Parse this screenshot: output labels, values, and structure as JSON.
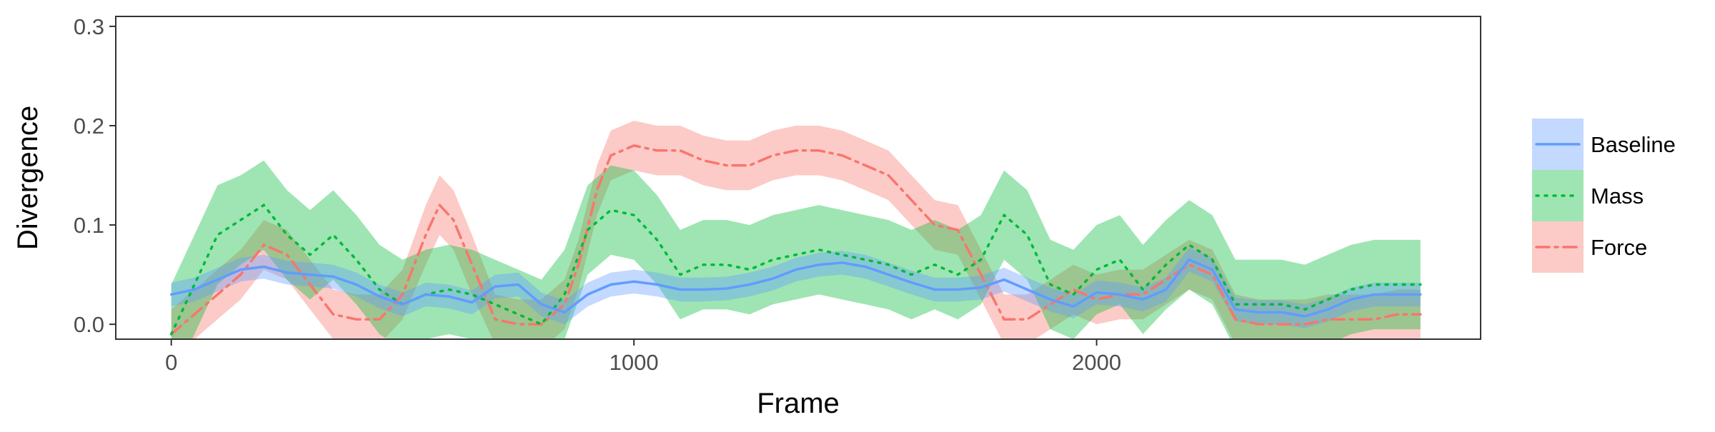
{
  "chart_data": {
    "type": "line",
    "title": "",
    "xlabel": "Frame",
    "ylabel": "Divergence",
    "xlim": [
      -120,
      2830
    ],
    "ylim": [
      -0.015,
      0.31
    ],
    "x_ticks": [
      0,
      1000,
      2000
    ],
    "x_tick_labels": [
      "0",
      "1000",
      "2000"
    ],
    "y_ticks": [
      0.0,
      0.1,
      0.2,
      0.3
    ],
    "y_tick_labels": [
      "0.0",
      "0.1",
      "0.2",
      "0.3"
    ],
    "grid": false,
    "legend_position": "right",
    "series": [
      {
        "name": "Force",
        "color": "#F8766D",
        "dash": "dashdot",
        "x": [
          0,
          50,
          100,
          150,
          200,
          250,
          300,
          350,
          400,
          450,
          500,
          550,
          580,
          610,
          650,
          700,
          750,
          800,
          850,
          880,
          920,
          950,
          1000,
          1050,
          1100,
          1150,
          1200,
          1250,
          1300,
          1350,
          1400,
          1450,
          1500,
          1550,
          1600,
          1650,
          1700,
          1750,
          1800,
          1850,
          1900,
          1950,
          2000,
          2050,
          2100,
          2150,
          2200,
          2250,
          2300,
          2350,
          2400,
          2450,
          2500,
          2550,
          2600,
          2650,
          2700
        ],
        "y": [
          -0.01,
          0.01,
          0.03,
          0.05,
          0.08,
          0.07,
          0.04,
          0.01,
          0.005,
          0.005,
          0.03,
          0.09,
          0.12,
          0.105,
          0.06,
          0.005,
          0.0,
          0.0,
          0.02,
          0.06,
          0.135,
          0.17,
          0.18,
          0.175,
          0.175,
          0.165,
          0.16,
          0.16,
          0.17,
          0.175,
          0.175,
          0.17,
          0.16,
          0.15,
          0.125,
          0.1,
          0.095,
          0.05,
          0.005,
          0.005,
          0.02,
          0.035,
          0.025,
          0.03,
          0.03,
          0.045,
          0.06,
          0.05,
          0.005,
          0.0,
          0.0,
          0.0,
          0.005,
          0.005,
          0.005,
          0.01,
          0.01
        ],
        "band": [
          0.025,
          0.025,
          0.025,
          0.025,
          0.025,
          0.025,
          0.025,
          0.025,
          0.025,
          0.025,
          0.025,
          0.03,
          0.03,
          0.03,
          0.03,
          0.025,
          0.025,
          0.025,
          0.025,
          0.025,
          0.025,
          0.025,
          0.025,
          0.025,
          0.025,
          0.025,
          0.025,
          0.025,
          0.025,
          0.025,
          0.025,
          0.025,
          0.025,
          0.025,
          0.025,
          0.025,
          0.025,
          0.025,
          0.025,
          0.025,
          0.025,
          0.025,
          0.025,
          0.025,
          0.025,
          0.025,
          0.025,
          0.025,
          0.025,
          0.025,
          0.025,
          0.025,
          0.025,
          0.025,
          0.025,
          0.025,
          0.025
        ]
      },
      {
        "name": "Mass",
        "color": "#00BA38",
        "dash": "dotted",
        "x": [
          0,
          50,
          100,
          150,
          200,
          250,
          300,
          350,
          400,
          450,
          500,
          550,
          600,
          650,
          700,
          750,
          800,
          850,
          900,
          950,
          1000,
          1050,
          1100,
          1150,
          1200,
          1250,
          1300,
          1350,
          1400,
          1450,
          1500,
          1550,
          1600,
          1650,
          1700,
          1750,
          1800,
          1850,
          1900,
          1950,
          2000,
          2050,
          2100,
          2150,
          2200,
          2250,
          2300,
          2350,
          2400,
          2450,
          2500,
          2550,
          2600,
          2650,
          2700
        ],
        "y": [
          -0.01,
          0.04,
          0.09,
          0.105,
          0.12,
          0.09,
          0.07,
          0.09,
          0.065,
          0.035,
          0.02,
          0.03,
          0.035,
          0.03,
          0.02,
          0.01,
          0.0,
          0.03,
          0.095,
          0.115,
          0.11,
          0.085,
          0.05,
          0.06,
          0.06,
          0.055,
          0.065,
          0.07,
          0.075,
          0.07,
          0.065,
          0.06,
          0.05,
          0.06,
          0.05,
          0.065,
          0.11,
          0.09,
          0.04,
          0.03,
          0.055,
          0.065,
          0.035,
          0.06,
          0.08,
          0.065,
          0.02,
          0.02,
          0.02,
          0.015,
          0.025,
          0.035,
          0.04,
          0.04,
          0.04
        ],
        "band": [
          0.05,
          0.05,
          0.05,
          0.045,
          0.045,
          0.045,
          0.045,
          0.045,
          0.045,
          0.045,
          0.045,
          0.045,
          0.045,
          0.045,
          0.045,
          0.045,
          0.045,
          0.045,
          0.045,
          0.045,
          0.045,
          0.045,
          0.045,
          0.045,
          0.045,
          0.045,
          0.045,
          0.045,
          0.045,
          0.045,
          0.045,
          0.045,
          0.045,
          0.045,
          0.045,
          0.045,
          0.045,
          0.045,
          0.045,
          0.045,
          0.045,
          0.045,
          0.045,
          0.045,
          0.045,
          0.045,
          0.045,
          0.045,
          0.045,
          0.045,
          0.045,
          0.045,
          0.045,
          0.045,
          0.045
        ]
      },
      {
        "name": "Baseline",
        "color": "#619CFF",
        "dash": "solid",
        "x": [
          0,
          50,
          100,
          150,
          200,
          250,
          300,
          350,
          400,
          450,
          500,
          550,
          600,
          650,
          700,
          750,
          800,
          850,
          900,
          950,
          1000,
          1050,
          1100,
          1150,
          1200,
          1250,
          1300,
          1350,
          1400,
          1450,
          1500,
          1550,
          1600,
          1650,
          1700,
          1750,
          1800,
          1850,
          1900,
          1950,
          2000,
          2050,
          2100,
          2150,
          2200,
          2250,
          2300,
          2350,
          2400,
          2450,
          2500,
          2550,
          2600,
          2650,
          2700
        ],
        "y": [
          0.03,
          0.035,
          0.045,
          0.055,
          0.058,
          0.052,
          0.05,
          0.048,
          0.04,
          0.028,
          0.02,
          0.03,
          0.028,
          0.022,
          0.038,
          0.04,
          0.02,
          0.012,
          0.03,
          0.04,
          0.043,
          0.04,
          0.035,
          0.035,
          0.036,
          0.04,
          0.046,
          0.055,
          0.06,
          0.062,
          0.058,
          0.05,
          0.042,
          0.035,
          0.035,
          0.037,
          0.045,
          0.035,
          0.025,
          0.018,
          0.032,
          0.03,
          0.025,
          0.035,
          0.065,
          0.055,
          0.015,
          0.012,
          0.012,
          0.008,
          0.015,
          0.025,
          0.03,
          0.03,
          0.03
        ],
        "band": [
          0.012,
          0.012,
          0.012,
          0.012,
          0.012,
          0.012,
          0.012,
          0.012,
          0.012,
          0.012,
          0.012,
          0.012,
          0.012,
          0.012,
          0.012,
          0.012,
          0.012,
          0.012,
          0.012,
          0.012,
          0.012,
          0.012,
          0.012,
          0.012,
          0.012,
          0.012,
          0.012,
          0.012,
          0.012,
          0.012,
          0.012,
          0.012,
          0.012,
          0.012,
          0.012,
          0.012,
          0.012,
          0.012,
          0.012,
          0.012,
          0.012,
          0.012,
          0.012,
          0.012,
          0.012,
          0.012,
          0.012,
          0.012,
          0.012,
          0.012,
          0.012,
          0.012,
          0.012,
          0.012,
          0.012
        ]
      }
    ],
    "legend": [
      {
        "name": "Baseline",
        "color": "#619CFF",
        "dash": "solid"
      },
      {
        "name": "Mass",
        "color": "#00BA38",
        "dash": "dotted"
      },
      {
        "name": "Force",
        "color": "#F8766D",
        "dash": "dashdot"
      }
    ]
  }
}
